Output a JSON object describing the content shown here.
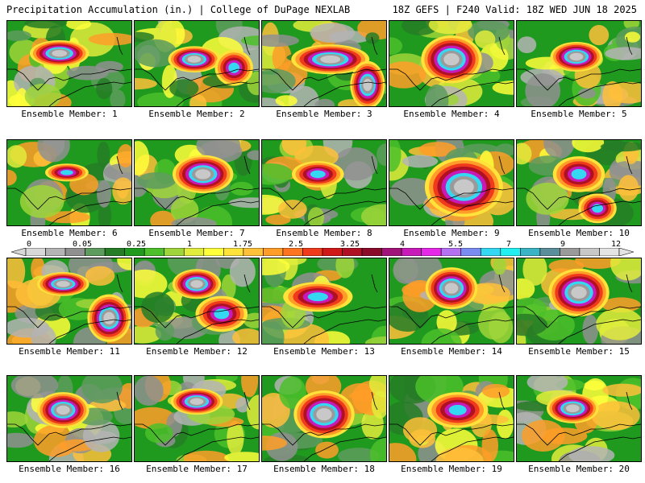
{
  "header": {
    "left_title": "Precipitation Accumulation (in.) | College of DuPage NEXLAB",
    "right_title": "18Z GEFS | F240 Valid: 18Z WED JUN 18 2025"
  },
  "legend": {
    "tick_labels": [
      "0",
      "0.05",
      "0.25",
      "1",
      "1.75",
      "2.5",
      "3.25",
      "4",
      "5.5",
      "7",
      "9",
      "12"
    ],
    "colors": [
      "#d8d8d8",
      "#b4b4b4",
      "#909090",
      "#5e9b5e",
      "#267d26",
      "#1f9a1f",
      "#4cbf2a",
      "#9fd53a",
      "#e2ec3c",
      "#ffff3a",
      "#ffe23a",
      "#ffc03a",
      "#ff9d28",
      "#ff7420",
      "#f03a1c",
      "#d01818",
      "#b01024",
      "#8a0a2a",
      "#a0147a",
      "#c81ab8",
      "#e628e8",
      "#b472f2",
      "#7a8cf2",
      "#35d8f2",
      "#22f0f0",
      "#3ab4c4",
      "#5a8e9a",
      "#9a9a9a",
      "#c8c8c8",
      "#e4e4e4"
    ]
  },
  "members": [
    {
      "label": "Ensemble Member: 1",
      "cores": [
        [
          0.42,
          0.38,
          0.34,
          0.22,
          3
        ]
      ]
    },
    {
      "label": "Ensemble Member: 2",
      "cores": [
        [
          0.48,
          0.45,
          0.3,
          0.22,
          3
        ],
        [
          0.8,
          0.55,
          0.22,
          0.3,
          2
        ]
      ]
    },
    {
      "label": "Ensemble Member: 3",
      "cores": [
        [
          0.55,
          0.45,
          0.45,
          0.25,
          3
        ],
        [
          0.85,
          0.75,
          0.2,
          0.4,
          3
        ]
      ]
    },
    {
      "label": "Ensemble Member: 4",
      "cores": [
        [
          0.5,
          0.45,
          0.35,
          0.4,
          3
        ]
      ]
    },
    {
      "label": "Ensemble Member: 5",
      "cores": [
        [
          0.48,
          0.42,
          0.3,
          0.25,
          3
        ]
      ]
    },
    {
      "label": "Ensemble Member: 6",
      "cores": [
        [
          0.48,
          0.38,
          0.25,
          0.15,
          2
        ]
      ]
    },
    {
      "label": "Ensemble Member: 7",
      "cores": [
        [
          0.55,
          0.4,
          0.35,
          0.32,
          3
        ]
      ]
    },
    {
      "label": "Ensemble Member: 8",
      "cores": [
        [
          0.45,
          0.4,
          0.3,
          0.22,
          2
        ]
      ]
    },
    {
      "label": "Ensemble Member: 9",
      "cores": [
        [
          0.6,
          0.55,
          0.45,
          0.5,
          3
        ]
      ]
    },
    {
      "label": "Ensemble Member: 10",
      "cores": [
        [
          0.5,
          0.4,
          0.3,
          0.3,
          2
        ],
        [
          0.65,
          0.8,
          0.22,
          0.25,
          2
        ]
      ]
    },
    {
      "label": "Ensemble Member: 11",
      "cores": [
        [
          0.45,
          0.3,
          0.3,
          0.2,
          3
        ],
        [
          0.82,
          0.7,
          0.25,
          0.4,
          3
        ]
      ]
    },
    {
      "label": "Ensemble Member: 12",
      "cores": [
        [
          0.5,
          0.3,
          0.28,
          0.25,
          3
        ],
        [
          0.7,
          0.65,
          0.3,
          0.3,
          2
        ]
      ]
    },
    {
      "label": "Ensemble Member: 13",
      "cores": [
        [
          0.45,
          0.45,
          0.4,
          0.25,
          2
        ]
      ]
    },
    {
      "label": "Ensemble Member: 14",
      "cores": [
        [
          0.5,
          0.35,
          0.3,
          0.35,
          3
        ]
      ]
    },
    {
      "label": "Ensemble Member: 15",
      "cores": [
        [
          0.5,
          0.4,
          0.35,
          0.4,
          3
        ]
      ]
    },
    {
      "label": "Ensemble Member: 16",
      "cores": [
        [
          0.45,
          0.4,
          0.3,
          0.3,
          3
        ]
      ]
    },
    {
      "label": "Ensemble Member: 17",
      "cores": [
        [
          0.5,
          0.3,
          0.3,
          0.22,
          3
        ]
      ]
    },
    {
      "label": "Ensemble Member: 18",
      "cores": [
        [
          0.5,
          0.45,
          0.35,
          0.4,
          3
        ]
      ]
    },
    {
      "label": "Ensemble Member: 19",
      "cores": [
        [
          0.55,
          0.4,
          0.35,
          0.3,
          2
        ]
      ]
    },
    {
      "label": "Ensemble Member: 20",
      "cores": [
        [
          0.45,
          0.38,
          0.3,
          0.25,
          3
        ]
      ]
    }
  ]
}
